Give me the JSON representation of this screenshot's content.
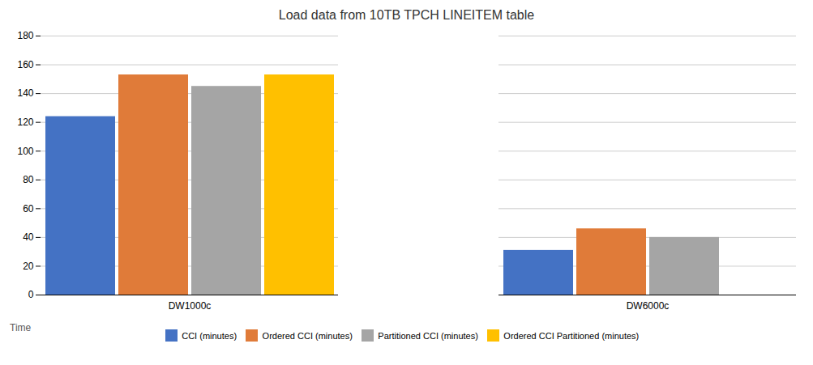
{
  "chart_data": {
    "type": "bar",
    "title": "Load data from 10TB TPCH LINEITEM table",
    "annotations": [
      "Time"
    ],
    "categories": [
      "DW1000c",
      "DW6000c"
    ],
    "series": [
      {
        "name": "CCI (minutes)",
        "color": "#4472C4",
        "values": [
          124,
          31
        ]
      },
      {
        "name": "Ordered CCI (minutes)",
        "color": "#E07B39",
        "values": [
          153,
          46
        ]
      },
      {
        "name": "Partitioned CCI (minutes)",
        "color": "#A5A5A5",
        "values": [
          145,
          40
        ]
      },
      {
        "name": "Ordered CCI Partitioned (minutes)",
        "color": "#FFC000",
        "values": [
          153,
          null
        ]
      }
    ],
    "ylim": [
      0,
      180
    ],
    "yticks": [
      0,
      20,
      40,
      60,
      80,
      100,
      120,
      140,
      160,
      180
    ],
    "grid": true,
    "legend": "bottom"
  }
}
